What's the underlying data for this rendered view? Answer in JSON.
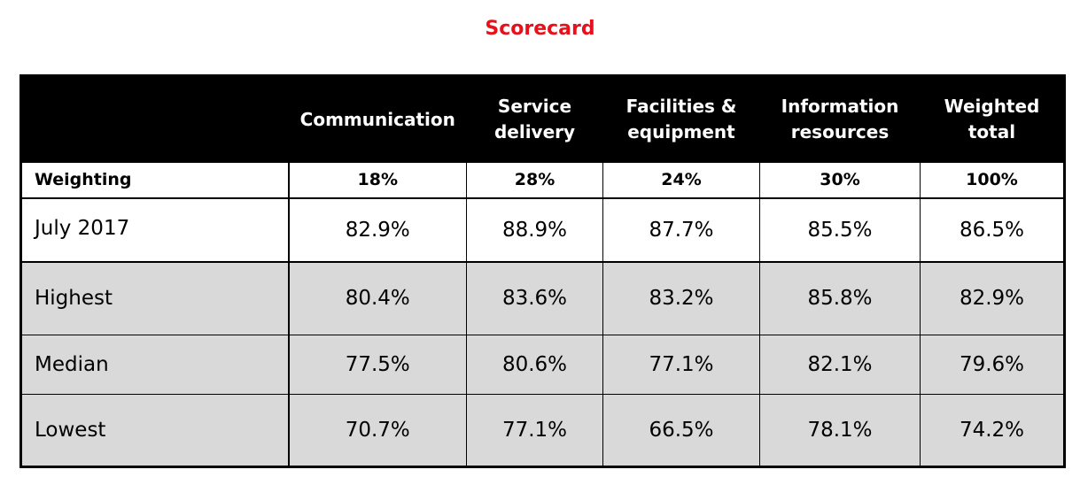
{
  "title": "Scorecard",
  "table": {
    "headers": [
      "",
      "Communication",
      "Service\ndelivery",
      "Facilities &\nequipment",
      "Information\nresources",
      "Weighted\ntotal"
    ],
    "weighting": {
      "label": "Weighting",
      "values": [
        "18%",
        "28%",
        "24%",
        "30%",
        "100%"
      ]
    },
    "rows": [
      {
        "label": "July 2017",
        "values": [
          "82.9%",
          "88.9%",
          "87.7%",
          "85.5%",
          "86.5%"
        ]
      },
      {
        "label": "Highest",
        "values": [
          "80.4%",
          "83.6%",
          "83.2%",
          "85.8%",
          "82.9%"
        ]
      },
      {
        "label": "Median",
        "values": [
          "77.5%",
          "80.6%",
          "77.1%",
          "82.1%",
          "79.6%"
        ]
      },
      {
        "label": "Lowest",
        "values": [
          "70.7%",
          "77.1%",
          "66.5%",
          "78.1%",
          "74.2%"
        ]
      }
    ]
  },
  "colors": {
    "title": "#e8101a",
    "header_bg": "#000000",
    "header_text": "#ffffff",
    "benchmark_bg": "#d9d9d9"
  }
}
